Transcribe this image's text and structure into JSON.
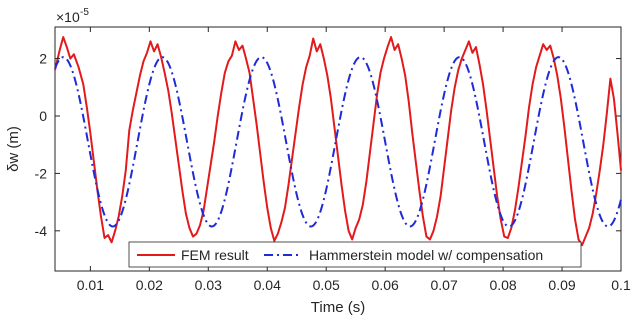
{
  "chart_data": {
    "type": "line",
    "title": "",
    "xlabel": "Time (s)",
    "ylabel": "δw (m)",
    "y_exponent_label": "×10",
    "y_exponent_value": "-5",
    "xlim": [
      0.004,
      0.1
    ],
    "ylim": [
      -5.4,
      3.1
    ],
    "x_ticks": [
      0.01,
      0.02,
      0.03,
      0.04,
      0.05,
      0.06,
      0.07,
      0.08,
      0.09,
      0.1
    ],
    "x_tick_labels": [
      "0.01",
      "0.02",
      "0.03",
      "0.04",
      "0.05",
      "0.06",
      "0.07",
      "0.08",
      "0.09",
      "0.1"
    ],
    "y_ticks": [
      -4,
      -2,
      0,
      2
    ],
    "y_tick_labels": [
      "-4",
      "-2",
      "0",
      "2"
    ],
    "grid": false,
    "legend_position": "bottom-center",
    "series": [
      {
        "name": "FEM result",
        "color": "#e31a1c",
        "line_style": "solid",
        "x": [
          0.004,
          0.0048,
          0.0054,
          0.006,
          0.0066,
          0.0072,
          0.008,
          0.0088,
          0.0094,
          0.01,
          0.0106,
          0.0112,
          0.0118,
          0.0124,
          0.013,
          0.0136,
          0.0142,
          0.0148,
          0.0154,
          0.016,
          0.0166,
          0.0172,
          0.0178,
          0.0184,
          0.019,
          0.0196,
          0.0202,
          0.0208,
          0.0214,
          0.022,
          0.0226,
          0.0232,
          0.0238,
          0.0244,
          0.025,
          0.0256,
          0.0262,
          0.0268,
          0.0274,
          0.028,
          0.0286,
          0.0292,
          0.0298,
          0.0304,
          0.031,
          0.0316,
          0.0322,
          0.0328,
          0.0334,
          0.034,
          0.0346,
          0.0352,
          0.0358,
          0.0364,
          0.037,
          0.0376,
          0.0382,
          0.0388,
          0.0394,
          0.04,
          0.0406,
          0.0412,
          0.0418,
          0.0424,
          0.043,
          0.0436,
          0.0442,
          0.0448,
          0.0454,
          0.046,
          0.0466,
          0.0472,
          0.0478,
          0.0484,
          0.049,
          0.0496,
          0.0502,
          0.0508,
          0.0514,
          0.052,
          0.0526,
          0.0532,
          0.0538,
          0.0544,
          0.055,
          0.0556,
          0.0562,
          0.0568,
          0.0574,
          0.058,
          0.0586,
          0.0592,
          0.0598,
          0.0604,
          0.061,
          0.0616,
          0.0622,
          0.0628,
          0.0634,
          0.064,
          0.0646,
          0.0652,
          0.0658,
          0.0664,
          0.067,
          0.0676,
          0.0682,
          0.0688,
          0.0694,
          0.07,
          0.0706,
          0.0712,
          0.0718,
          0.0724,
          0.073,
          0.0736,
          0.0742,
          0.0748,
          0.0754,
          0.076,
          0.0766,
          0.0772,
          0.0778,
          0.0784,
          0.079,
          0.0796,
          0.0802,
          0.0808,
          0.0814,
          0.082,
          0.0826,
          0.0832,
          0.0838,
          0.0844,
          0.085,
          0.0856,
          0.0862,
          0.0868,
          0.0874,
          0.088,
          0.0886,
          0.0892,
          0.0898,
          0.0904,
          0.091,
          0.0916,
          0.0922,
          0.0928,
          0.0934,
          0.094,
          0.0946,
          0.0952,
          0.0958,
          0.0964,
          0.097,
          0.0976,
          0.0982,
          0.0988,
          0.0994,
          0.1
        ],
        "y": [
          1.6,
          2.3,
          2.75,
          2.4,
          2.0,
          2.15,
          1.7,
          1.1,
          0.3,
          -0.6,
          -1.6,
          -2.6,
          -3.5,
          -4.25,
          -4.15,
          -4.4,
          -4.0,
          -3.5,
          -2.8,
          -1.9,
          -0.5,
          0.2,
          0.8,
          1.4,
          1.9,
          2.2,
          2.6,
          2.25,
          2.5,
          2.05,
          1.5,
          0.9,
          0.1,
          -0.8,
          -1.7,
          -2.6,
          -3.4,
          -3.9,
          -4.2,
          -4.1,
          -3.8,
          -3.3,
          -2.5,
          -1.7,
          -0.9,
          0.0,
          0.8,
          1.5,
          1.9,
          2.1,
          2.6,
          2.3,
          2.45,
          2.0,
          1.5,
          0.6,
          -0.3,
          -1.3,
          -2.3,
          -3.2,
          -3.9,
          -4.35,
          -4.1,
          -3.7,
          -3.2,
          -2.4,
          -1.5,
          -0.6,
          0.3,
          1.1,
          1.7,
          2.1,
          2.7,
          2.25,
          2.5,
          2.0,
          1.4,
          0.6,
          -0.4,
          -1.4,
          -2.4,
          -3.3,
          -4.0,
          -4.3,
          -3.9,
          -3.6,
          -3.1,
          -2.3,
          -1.3,
          -0.3,
          0.7,
          1.5,
          2.0,
          2.4,
          2.75,
          2.3,
          2.5,
          2.0,
          1.4,
          0.5,
          -0.6,
          -1.6,
          -2.6,
          -3.5,
          -4.2,
          -4.3,
          -4.0,
          -3.5,
          -2.8,
          -1.8,
          -0.8,
          0.2,
          1.0,
          1.6,
          2.0,
          2.3,
          2.6,
          2.2,
          2.4,
          1.8,
          1.1,
          0.2,
          -0.8,
          -1.8,
          -2.8,
          -3.6,
          -4.2,
          -4.25,
          -3.9,
          -3.3,
          -2.5,
          -1.6,
          -0.7,
          0.3,
          1.1,
          1.7,
          2.1,
          2.5,
          2.3,
          2.45,
          2.0,
          1.4,
          0.6,
          -0.4,
          -1.5,
          -2.6,
          -3.6,
          -4.3,
          -4.5,
          -4.2,
          -3.9,
          -3.4,
          -2.7,
          -1.9,
          -1.0,
          0.1,
          1.3,
          0.6,
          -0.6,
          -1.9
        ]
      },
      {
        "name": "Hammerstein model w/ compensation",
        "color": "#1f2bd6",
        "line_style": "dash-dot",
        "model": {
          "offset": -0.9,
          "amplitude": 2.95,
          "period": 0.0168,
          "peak_times": [
            0.0054,
            0.0222,
            0.039,
            0.0558,
            0.0726,
            0.0894
          ],
          "x_start": 0.004,
          "x_end": 0.1
        }
      }
    ]
  }
}
